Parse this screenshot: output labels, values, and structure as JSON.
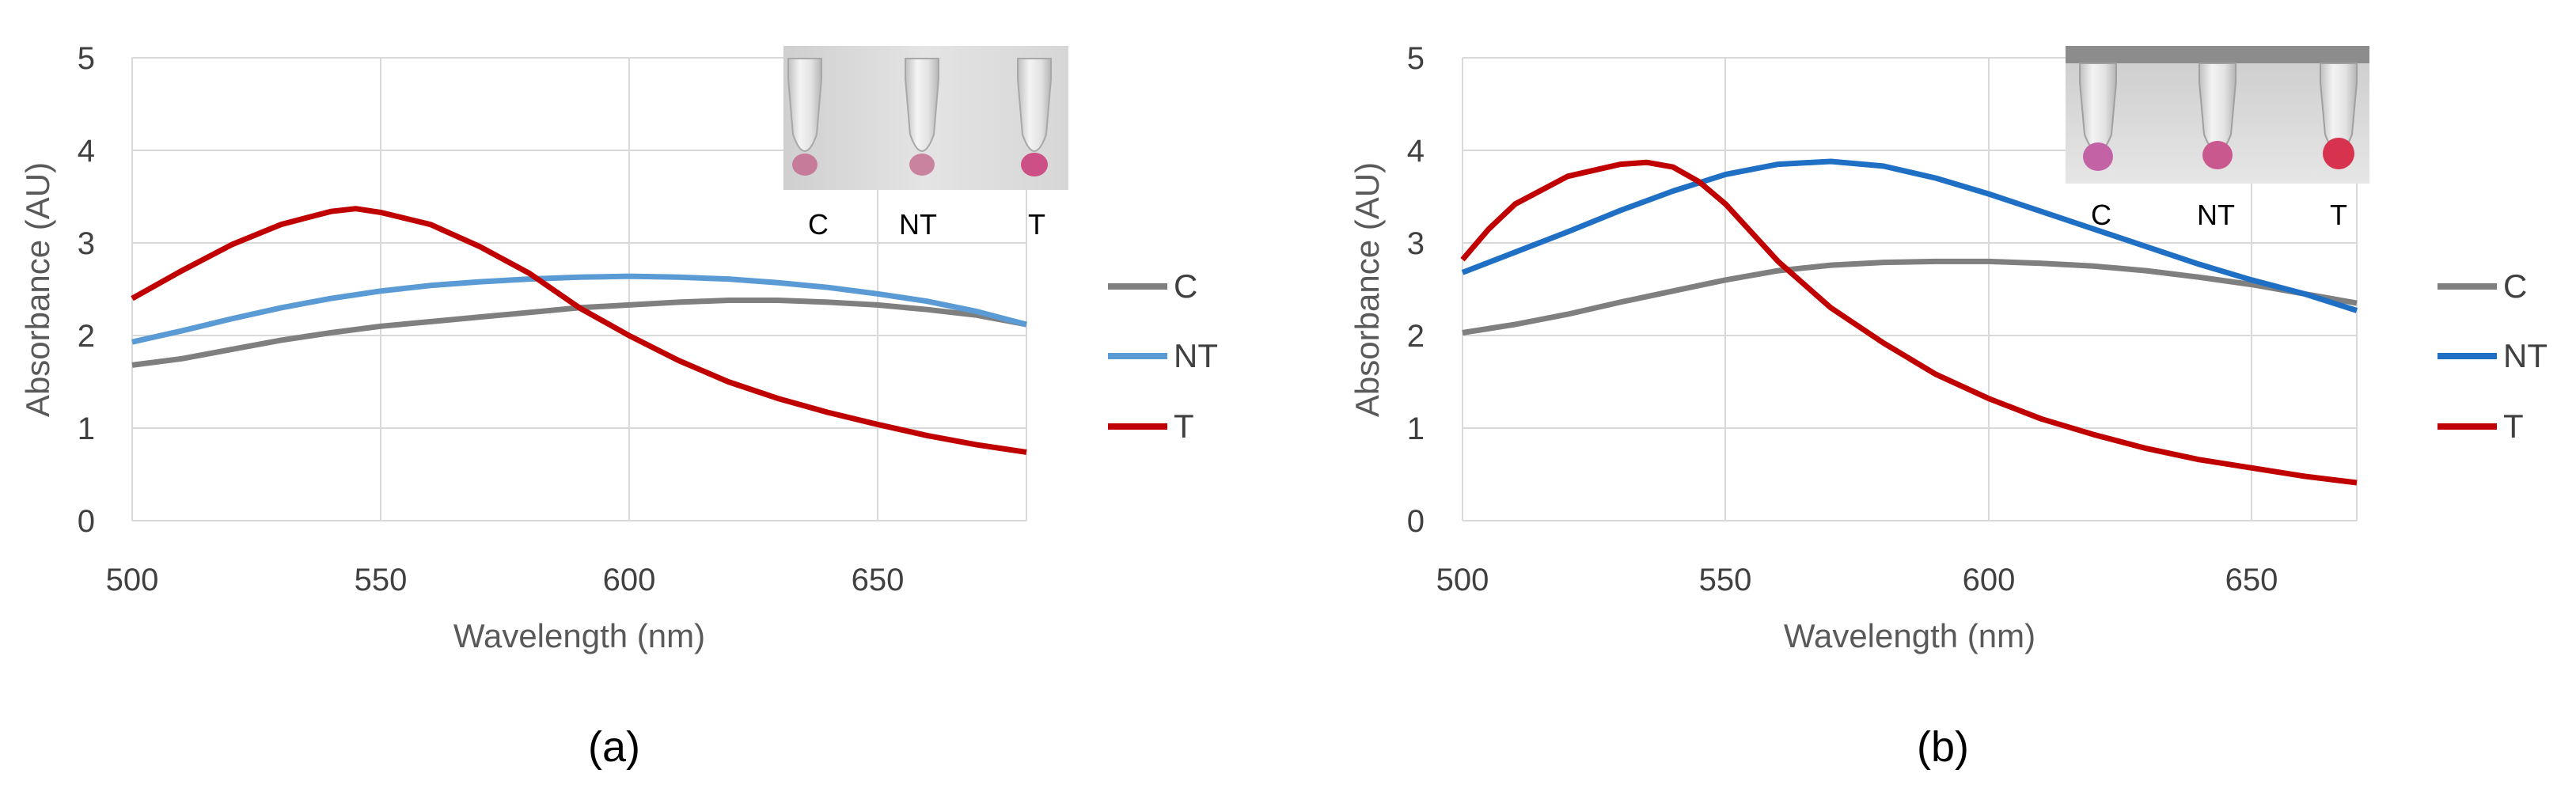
{
  "chart_data": [
    {
      "type": "line",
      "panel_label": "(a)",
      "xlabel": "Wavelength (nm)",
      "ylabel": "Absorbance (AU)",
      "xlim": [
        500,
        680
      ],
      "ylim": [
        0,
        5
      ],
      "x_ticks": [
        "500",
        "550",
        "600",
        "650"
      ],
      "y_ticks": [
        "0",
        "1",
        "2",
        "3",
        "4",
        "5"
      ],
      "grid": true,
      "legend_position": "right",
      "inset_labels": [
        "C",
        "NT",
        "T"
      ],
      "series": [
        {
          "name": "C",
          "color": "#7f7f7f",
          "x": [
            500,
            510,
            520,
            530,
            540,
            550,
            560,
            570,
            580,
            590,
            600,
            610,
            620,
            630,
            640,
            650,
            660,
            670,
            680
          ],
          "y": [
            1.68,
            1.75,
            1.85,
            1.95,
            2.03,
            2.1,
            2.15,
            2.2,
            2.25,
            2.3,
            2.33,
            2.36,
            2.38,
            2.38,
            2.36,
            2.33,
            2.28,
            2.22,
            2.12
          ]
        },
        {
          "name": "NT",
          "color": "#5b9bd5",
          "x": [
            500,
            510,
            520,
            530,
            540,
            550,
            560,
            570,
            580,
            590,
            600,
            610,
            620,
            630,
            640,
            650,
            660,
            670,
            680
          ],
          "y": [
            1.93,
            2.05,
            2.18,
            2.3,
            2.4,
            2.48,
            2.54,
            2.58,
            2.61,
            2.63,
            2.64,
            2.63,
            2.61,
            2.57,
            2.52,
            2.45,
            2.37,
            2.26,
            2.12
          ]
        },
        {
          "name": "T",
          "color": "#c00000",
          "x": [
            500,
            510,
            520,
            530,
            540,
            545,
            550,
            560,
            570,
            580,
            590,
            600,
            610,
            620,
            630,
            640,
            650,
            660,
            670,
            680
          ],
          "y": [
            2.4,
            2.7,
            2.98,
            3.2,
            3.34,
            3.37,
            3.33,
            3.2,
            2.96,
            2.67,
            2.3,
            2.0,
            1.73,
            1.5,
            1.32,
            1.17,
            1.04,
            0.92,
            0.82,
            0.74
          ]
        }
      ]
    },
    {
      "type": "line",
      "panel_label": "(b)",
      "xlabel": "Wavelength (nm)",
      "ylabel": "Absorbance (AU)",
      "xlim": [
        500,
        670
      ],
      "ylim": [
        0,
        5
      ],
      "x_ticks": [
        "500",
        "550",
        "600",
        "650"
      ],
      "y_ticks": [
        "0",
        "1",
        "2",
        "3",
        "4",
        "5"
      ],
      "grid": true,
      "legend_position": "right",
      "inset_labels": [
        "C",
        "NT",
        "T"
      ],
      "series": [
        {
          "name": "C",
          "color": "#7f7f7f",
          "x": [
            500,
            510,
            520,
            530,
            540,
            550,
            560,
            570,
            580,
            590,
            600,
            610,
            620,
            630,
            640,
            650,
            660,
            670
          ],
          "y": [
            2.03,
            2.12,
            2.23,
            2.36,
            2.48,
            2.6,
            2.7,
            2.76,
            2.79,
            2.8,
            2.8,
            2.78,
            2.75,
            2.7,
            2.63,
            2.55,
            2.45,
            2.35
          ]
        },
        {
          "name": "NT",
          "color": "#1f6fc4",
          "x": [
            500,
            510,
            520,
            530,
            540,
            550,
            560,
            570,
            580,
            590,
            600,
            610,
            620,
            630,
            640,
            650,
            660,
            670
          ],
          "y": [
            2.68,
            2.9,
            3.12,
            3.35,
            3.56,
            3.74,
            3.85,
            3.88,
            3.83,
            3.7,
            3.53,
            3.34,
            3.15,
            2.96,
            2.77,
            2.6,
            2.45,
            2.27
          ]
        },
        {
          "name": "T",
          "color": "#c00000",
          "x": [
            500,
            505,
            510,
            520,
            530,
            535,
            540,
            545,
            550,
            560,
            570,
            580,
            590,
            600,
            610,
            620,
            630,
            640,
            650,
            660,
            670
          ],
          "y": [
            2.82,
            3.15,
            3.42,
            3.72,
            3.85,
            3.87,
            3.82,
            3.66,
            3.42,
            2.8,
            2.3,
            1.92,
            1.58,
            1.32,
            1.1,
            0.93,
            0.78,
            0.66,
            0.57,
            0.48,
            0.41
          ]
        }
      ]
    }
  ]
}
